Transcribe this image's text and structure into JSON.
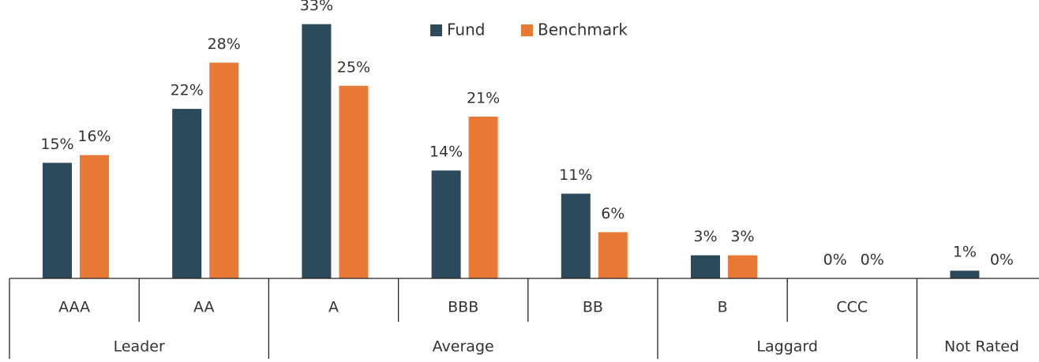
{
  "chart_data": {
    "type": "bar",
    "groups": [
      {
        "label": "Leader",
        "categories": [
          "AAA",
          "AA"
        ]
      },
      {
        "label": "Average",
        "categories": [
          "A",
          "BBB",
          "BB"
        ]
      },
      {
        "label": "Laggard",
        "categories": [
          "B",
          "CCC"
        ]
      },
      {
        "label": "Not Rated",
        "categories": [
          null
        ]
      }
    ],
    "series": [
      {
        "name": "Fund",
        "color": "#2c4a5c",
        "values": [
          15,
          22,
          33,
          14,
          11,
          3,
          0,
          1
        ],
        "value_labels": [
          "15%",
          "22%",
          "33%",
          "14%",
          "11%",
          "3%",
          "0%",
          "1%"
        ]
      },
      {
        "name": "Benchmark",
        "color": "#e87a35",
        "values": [
          16,
          28,
          25,
          21,
          6,
          3,
          0,
          0
        ],
        "value_labels": [
          "16%",
          "28%",
          "25%",
          "21%",
          "6%",
          "3%",
          "0%",
          "0%"
        ]
      }
    ]
  }
}
